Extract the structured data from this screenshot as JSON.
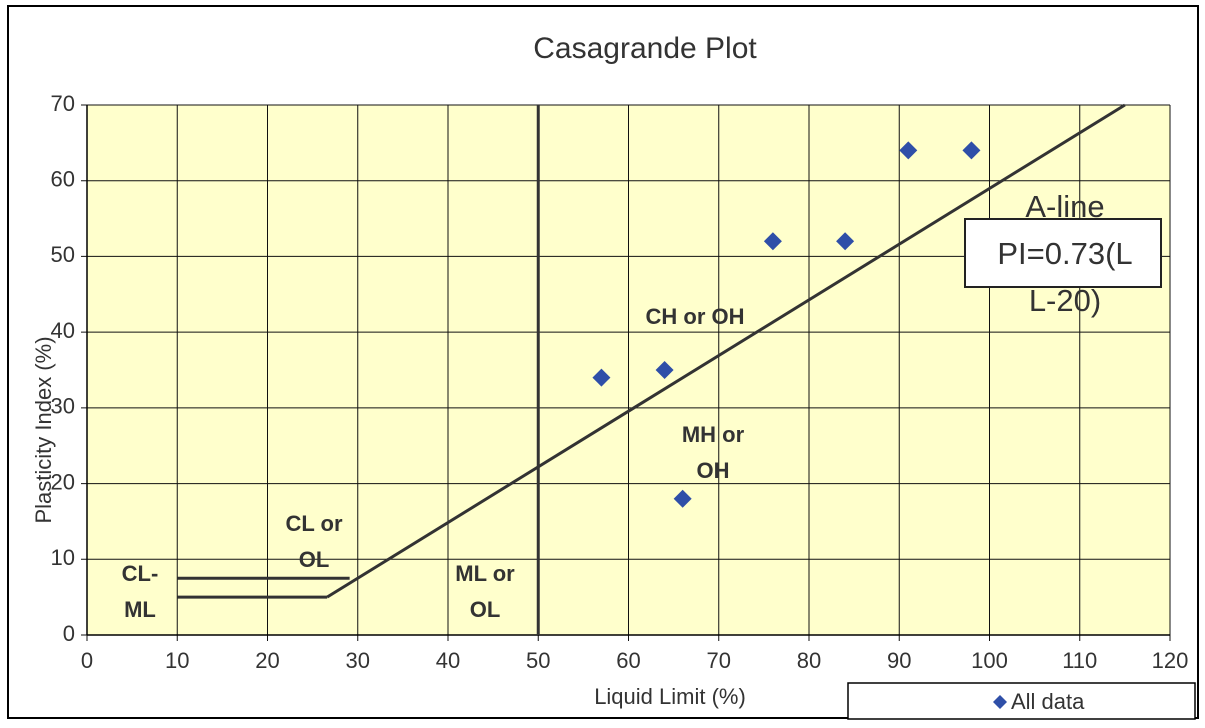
{
  "chart_data": {
    "type": "scatter",
    "title": "Casagrande Plot",
    "xlabel": "Liquid Limit (%)",
    "ylabel": "Plasticity Index (%)",
    "xlim": [
      0,
      120
    ],
    "ylim": [
      0,
      70
    ],
    "xticks": [
      0,
      10,
      20,
      30,
      40,
      50,
      60,
      70,
      80,
      90,
      100,
      110,
      120
    ],
    "yticks": [
      0,
      10,
      20,
      30,
      40,
      50,
      60,
      70
    ],
    "grid": true,
    "legend": "bottom-right",
    "series": [
      {
        "name": "All data",
        "color": "#2f4fa8",
        "x": [
          57,
          64,
          66,
          76,
          84,
          91,
          98
        ],
        "values": [
          34,
          35,
          18,
          52,
          52,
          64,
          64
        ]
      }
    ],
    "lines": [
      {
        "color": "#333333",
        "x": [
          26.6,
          115
        ],
        "values": [
          5,
          70
        ]
      },
      {
        "color": "#333333",
        "x": [
          10,
          26.6
        ],
        "values": [
          5,
          5
        ]
      },
      {
        "color": "#333333",
        "x": [
          10,
          29.1
        ],
        "values": [
          7.5,
          7.5
        ]
      },
      {
        "color": "#333333",
        "x": [
          50,
          50
        ],
        "values": [
          0,
          70
        ]
      }
    ],
    "annotations": [
      {
        "lines": [
          "CH or OH"
        ]
      },
      {
        "lines": [
          "MH or",
          "OH"
        ]
      },
      {
        "lines": [
          "CL or",
          "OL"
        ]
      },
      {
        "lines": [
          "CL-",
          "ML"
        ]
      },
      {
        "lines": [
          "ML or",
          "OL"
        ]
      },
      {
        "lines": [
          "A-line",
          "PI=0.73(L",
          "L-20)"
        ]
      }
    ]
  }
}
